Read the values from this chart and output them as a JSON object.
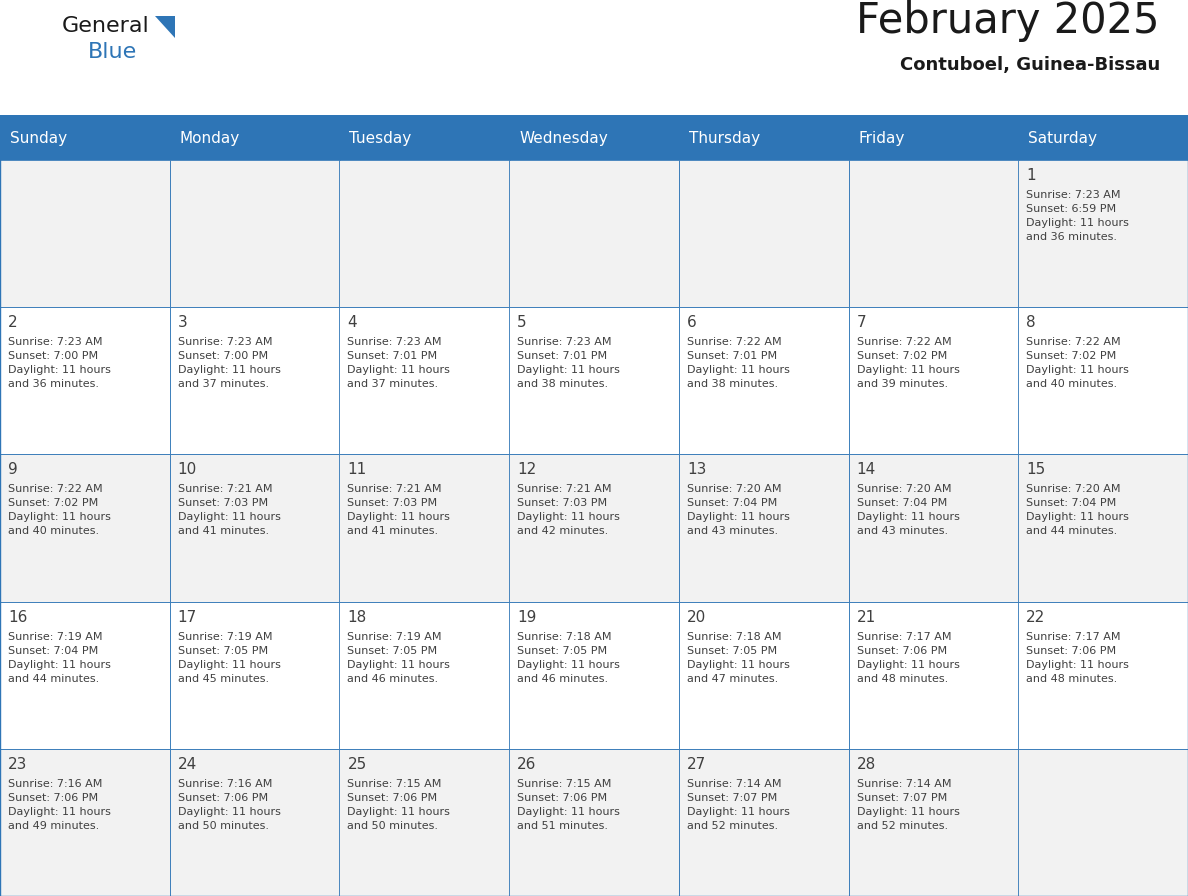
{
  "title": "February 2025",
  "subtitle": "Contuboel, Guinea-Bissau",
  "header_bg": "#2E75B6",
  "header_text": "#FFFFFF",
  "cell_bg_even": "#F2F2F2",
  "cell_bg_odd": "#FFFFFF",
  "day_headers": [
    "Sunday",
    "Monday",
    "Tuesday",
    "Wednesday",
    "Thursday",
    "Friday",
    "Saturday"
  ],
  "days": [
    {
      "day": 1,
      "col": 6,
      "row": 0,
      "sunrise": "7:23 AM",
      "sunset": "6:59 PM",
      "daylight": "11 hours and 36 minutes."
    },
    {
      "day": 2,
      "col": 0,
      "row": 1,
      "sunrise": "7:23 AM",
      "sunset": "7:00 PM",
      "daylight": "11 hours and 36 minutes."
    },
    {
      "day": 3,
      "col": 1,
      "row": 1,
      "sunrise": "7:23 AM",
      "sunset": "7:00 PM",
      "daylight": "11 hours and 37 minutes."
    },
    {
      "day": 4,
      "col": 2,
      "row": 1,
      "sunrise": "7:23 AM",
      "sunset": "7:01 PM",
      "daylight": "11 hours and 37 minutes."
    },
    {
      "day": 5,
      "col": 3,
      "row": 1,
      "sunrise": "7:23 AM",
      "sunset": "7:01 PM",
      "daylight": "11 hours and 38 minutes."
    },
    {
      "day": 6,
      "col": 4,
      "row": 1,
      "sunrise": "7:22 AM",
      "sunset": "7:01 PM",
      "daylight": "11 hours and 38 minutes."
    },
    {
      "day": 7,
      "col": 5,
      "row": 1,
      "sunrise": "7:22 AM",
      "sunset": "7:02 PM",
      "daylight": "11 hours and 39 minutes."
    },
    {
      "day": 8,
      "col": 6,
      "row": 1,
      "sunrise": "7:22 AM",
      "sunset": "7:02 PM",
      "daylight": "11 hours and 40 minutes."
    },
    {
      "day": 9,
      "col": 0,
      "row": 2,
      "sunrise": "7:22 AM",
      "sunset": "7:02 PM",
      "daylight": "11 hours and 40 minutes."
    },
    {
      "day": 10,
      "col": 1,
      "row": 2,
      "sunrise": "7:21 AM",
      "sunset": "7:03 PM",
      "daylight": "11 hours and 41 minutes."
    },
    {
      "day": 11,
      "col": 2,
      "row": 2,
      "sunrise": "7:21 AM",
      "sunset": "7:03 PM",
      "daylight": "11 hours and 41 minutes."
    },
    {
      "day": 12,
      "col": 3,
      "row": 2,
      "sunrise": "7:21 AM",
      "sunset": "7:03 PM",
      "daylight": "11 hours and 42 minutes."
    },
    {
      "day": 13,
      "col": 4,
      "row": 2,
      "sunrise": "7:20 AM",
      "sunset": "7:04 PM",
      "daylight": "11 hours and 43 minutes."
    },
    {
      "day": 14,
      "col": 5,
      "row": 2,
      "sunrise": "7:20 AM",
      "sunset": "7:04 PM",
      "daylight": "11 hours and 43 minutes."
    },
    {
      "day": 15,
      "col": 6,
      "row": 2,
      "sunrise": "7:20 AM",
      "sunset": "7:04 PM",
      "daylight": "11 hours and 44 minutes."
    },
    {
      "day": 16,
      "col": 0,
      "row": 3,
      "sunrise": "7:19 AM",
      "sunset": "7:04 PM",
      "daylight": "11 hours and 44 minutes."
    },
    {
      "day": 17,
      "col": 1,
      "row": 3,
      "sunrise": "7:19 AM",
      "sunset": "7:05 PM",
      "daylight": "11 hours and 45 minutes."
    },
    {
      "day": 18,
      "col": 2,
      "row": 3,
      "sunrise": "7:19 AM",
      "sunset": "7:05 PM",
      "daylight": "11 hours and 46 minutes."
    },
    {
      "day": 19,
      "col": 3,
      "row": 3,
      "sunrise": "7:18 AM",
      "sunset": "7:05 PM",
      "daylight": "11 hours and 46 minutes."
    },
    {
      "day": 20,
      "col": 4,
      "row": 3,
      "sunrise": "7:18 AM",
      "sunset": "7:05 PM",
      "daylight": "11 hours and 47 minutes."
    },
    {
      "day": 21,
      "col": 5,
      "row": 3,
      "sunrise": "7:17 AM",
      "sunset": "7:06 PM",
      "daylight": "11 hours and 48 minutes."
    },
    {
      "day": 22,
      "col": 6,
      "row": 3,
      "sunrise": "7:17 AM",
      "sunset": "7:06 PM",
      "daylight": "11 hours and 48 minutes."
    },
    {
      "day": 23,
      "col": 0,
      "row": 4,
      "sunrise": "7:16 AM",
      "sunset": "7:06 PM",
      "daylight": "11 hours and 49 minutes."
    },
    {
      "day": 24,
      "col": 1,
      "row": 4,
      "sunrise": "7:16 AM",
      "sunset": "7:06 PM",
      "daylight": "11 hours and 50 minutes."
    },
    {
      "day": 25,
      "col": 2,
      "row": 4,
      "sunrise": "7:15 AM",
      "sunset": "7:06 PM",
      "daylight": "11 hours and 50 minutes."
    },
    {
      "day": 26,
      "col": 3,
      "row": 4,
      "sunrise": "7:15 AM",
      "sunset": "7:06 PM",
      "daylight": "11 hours and 51 minutes."
    },
    {
      "day": 27,
      "col": 4,
      "row": 4,
      "sunrise": "7:14 AM",
      "sunset": "7:07 PM",
      "daylight": "11 hours and 52 minutes."
    },
    {
      "day": 28,
      "col": 5,
      "row": 4,
      "sunrise": "7:14 AM",
      "sunset": "7:07 PM",
      "daylight": "11 hours and 52 minutes."
    }
  ],
  "num_rows": 5,
  "text_color": "#404040",
  "border_color": "#2E75B6",
  "logo_text_color": "#1a1a1a",
  "logo_blue_color": "#2E75B6",
  "subtitle_fontsize": 13,
  "title_fontsize": 30,
  "header_fontsize": 11,
  "day_num_fontsize": 11,
  "cell_text_fontsize": 8
}
